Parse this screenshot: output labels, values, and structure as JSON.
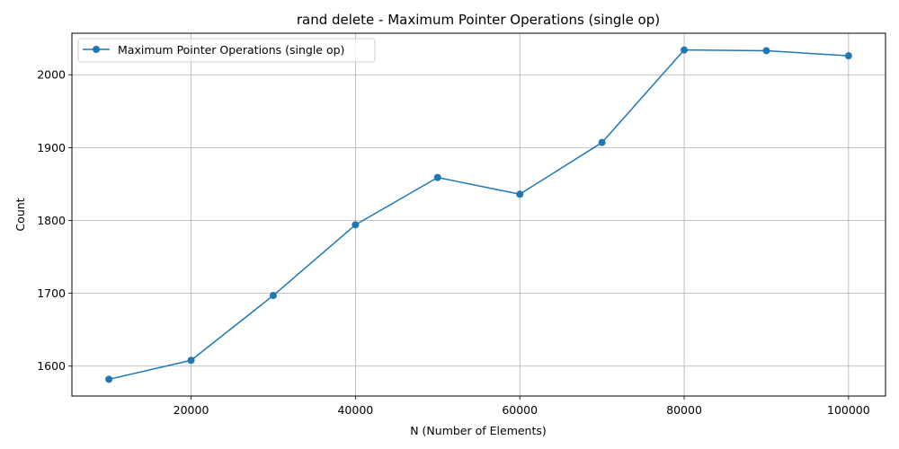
{
  "chart_data": {
    "type": "line",
    "title": "rand delete - Maximum Pointer Operations (single op)",
    "xlabel": "N (Number of Elements)",
    "ylabel": "Count",
    "x": [
      10000,
      20000,
      30000,
      40000,
      50000,
      60000,
      70000,
      80000,
      90000,
      100000
    ],
    "series": [
      {
        "name": "Maximum Pointer Operations (single op)",
        "values": [
          1582,
          1608,
          1697,
          1794,
          1859,
          1836,
          1907,
          2034,
          2033,
          2026
        ],
        "color": "#1f77b4"
      }
    ],
    "xlim": [
      5500,
      104500
    ],
    "ylim": [
      1559,
      2057
    ],
    "xticks": [
      20000,
      40000,
      60000,
      80000,
      100000
    ],
    "yticks": [
      1600,
      1700,
      1800,
      1900,
      2000
    ],
    "grid": true,
    "legend_position": "top-left"
  }
}
